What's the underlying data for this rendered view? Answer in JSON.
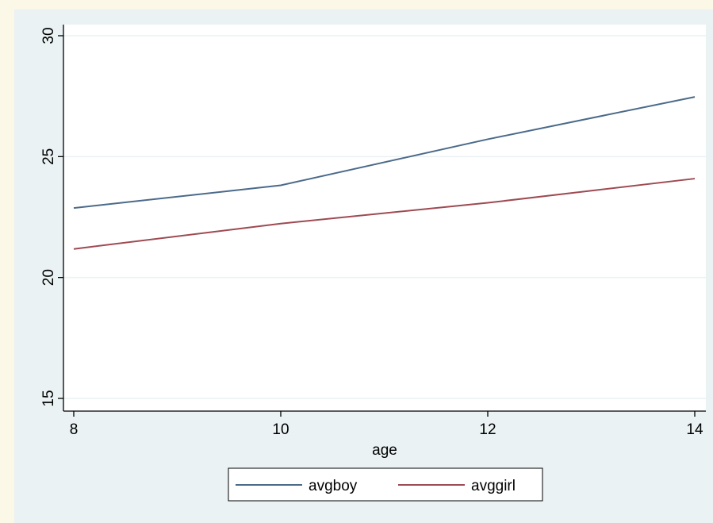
{
  "chart_data": {
    "type": "line",
    "title": "",
    "xlabel": "age",
    "ylabel": "",
    "x": [
      8,
      10,
      12,
      14
    ],
    "xlim": [
      8,
      14
    ],
    "ylim": [
      15,
      30
    ],
    "xticks": [
      "8",
      "10",
      "12",
      "14"
    ],
    "yticks": [
      "15",
      "20",
      "25",
      "30"
    ],
    "grid": true,
    "legend_position": "bottom",
    "series": [
      {
        "name": "avgboy",
        "color": "#4a6a8a",
        "values": [
          22.875,
          23.8125,
          25.71875,
          27.46875
        ]
      },
      {
        "name": "avggirl",
        "color": "#9e4a52",
        "values": [
          21.18,
          22.23,
          23.09,
          24.09
        ]
      }
    ],
    "background_color": "#eaf2f3",
    "plot_background_color": "#ffffff"
  }
}
